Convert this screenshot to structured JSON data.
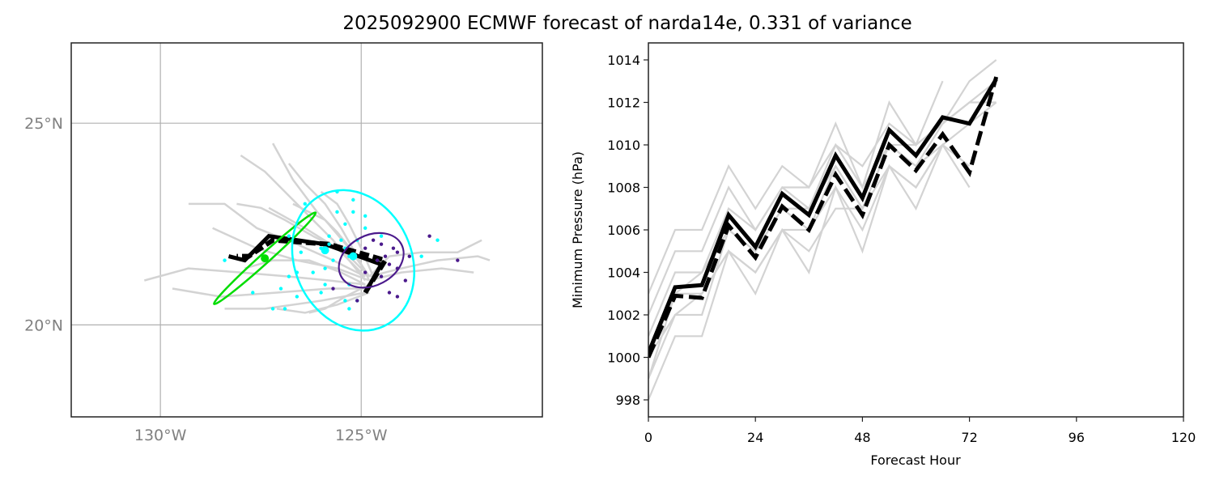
{
  "figure": {
    "title": "2025092900 ECMWF forecast of narda14e, 0.331 of variance"
  },
  "chart_data": [
    {
      "type": "map-track",
      "name": "track-map",
      "xlim": [
        -132.22,
        -120.49
      ],
      "ylim": [
        17.72,
        26.99
      ],
      "grid": true,
      "x_ticks": [
        {
          "value": -130,
          "label": "130°W"
        },
        {
          "value": -125,
          "label": "125°W"
        }
      ],
      "y_ticks": [
        {
          "value": 25,
          "label": "25°N"
        },
        {
          "value": 20,
          "label": "20°N"
        }
      ],
      "colors": {
        "member": "#d3d3d3",
        "mean": "#000000",
        "green": "#00dd00",
        "cyan": "#00ffff",
        "purple": "#4b1a8c",
        "grid": "#b0b0b0",
        "tick_label": "#808080"
      },
      "member_tracks": [
        [
          [
            -124.8,
            21.2
          ],
          [
            -125.2,
            21.8
          ],
          [
            -125.6,
            22.3
          ],
          [
            -126.1,
            22.8
          ],
          [
            -126.7,
            23.6
          ],
          [
            -127.2,
            24.5
          ]
        ],
        [
          [
            -124.9,
            21.1
          ],
          [
            -125.3,
            21.6
          ],
          [
            -125.7,
            22.1
          ],
          [
            -126.3,
            22.7
          ],
          [
            -126.8,
            23.2
          ],
          [
            -127.4,
            23.8
          ],
          [
            -128.0,
            24.2
          ]
        ],
        [
          [
            -124.8,
            21.1
          ],
          [
            -125.1,
            21.7
          ],
          [
            -125.5,
            22.4
          ],
          [
            -125.9,
            23.0
          ],
          [
            -126.4,
            23.5
          ],
          [
            -126.8,
            24.0
          ]
        ],
        [
          [
            -124.7,
            21.2
          ],
          [
            -125.0,
            21.9
          ],
          [
            -125.3,
            22.5
          ],
          [
            -125.6,
            23.0
          ],
          [
            -126.0,
            23.3
          ]
        ],
        [
          [
            -124.8,
            21.2
          ],
          [
            -125.4,
            21.8
          ],
          [
            -126.2,
            22.2
          ],
          [
            -126.9,
            22.6
          ],
          [
            -127.5,
            22.9
          ],
          [
            -128.1,
            23.0
          ]
        ],
        [
          [
            -124.9,
            21.2
          ],
          [
            -125.7,
            21.6
          ],
          [
            -126.6,
            22.0
          ],
          [
            -127.6,
            22.4
          ],
          [
            -128.4,
            23.0
          ],
          [
            -129.3,
            23.0
          ]
        ],
        [
          [
            -124.8,
            21.1
          ],
          [
            -125.6,
            21.4
          ],
          [
            -126.6,
            21.6
          ],
          [
            -127.6,
            21.9
          ],
          [
            -128.7,
            22.4
          ]
        ],
        [
          [
            -124.9,
            21.0
          ],
          [
            -125.8,
            21.1
          ],
          [
            -126.8,
            21.2
          ],
          [
            -128.0,
            21.3
          ],
          [
            -129.3,
            21.4
          ],
          [
            -130.4,
            21.1
          ]
        ],
        [
          [
            -124.8,
            20.9
          ],
          [
            -125.8,
            20.9
          ],
          [
            -127.1,
            20.8
          ],
          [
            -128.5,
            20.7
          ],
          [
            -129.7,
            20.9
          ]
        ],
        [
          [
            -124.9,
            20.8
          ],
          [
            -126.0,
            20.6
          ],
          [
            -127.4,
            20.4
          ],
          [
            -128.4,
            20.4
          ]
        ],
        [
          [
            -124.8,
            20.8
          ],
          [
            -125.6,
            20.5
          ],
          [
            -126.4,
            20.3
          ],
          [
            -127.1,
            20.4
          ]
        ],
        [
          [
            -124.8,
            21.2
          ],
          [
            -124.3,
            21.7
          ],
          [
            -123.5,
            21.8
          ],
          [
            -122.6,
            21.8
          ],
          [
            -122.0,
            22.1
          ]
        ],
        [
          [
            -124.8,
            21.2
          ],
          [
            -124.0,
            21.4
          ],
          [
            -123.1,
            21.6
          ],
          [
            -122.1,
            21.7
          ],
          [
            -121.8,
            21.6
          ]
        ],
        [
          [
            -124.8,
            21.1
          ],
          [
            -124.0,
            21.3
          ],
          [
            -123.0,
            21.4
          ],
          [
            -122.2,
            21.3
          ]
        ],
        [
          [
            -124.8,
            21.2
          ],
          [
            -125.3,
            21.9
          ],
          [
            -125.9,
            22.6
          ],
          [
            -126.7,
            23.0
          ]
        ],
        [
          [
            -124.9,
            21.2
          ],
          [
            -125.6,
            21.9
          ],
          [
            -126.4,
            22.4
          ],
          [
            -127.3,
            22.9
          ]
        ],
        [
          [
            -124.8,
            21.0
          ],
          [
            -125.4,
            20.7
          ],
          [
            -125.9,
            20.4
          ],
          [
            -126.3,
            20.3
          ]
        ],
        [
          [
            -124.9,
            21.0
          ],
          [
            -125.5,
            21.3
          ],
          [
            -126.3,
            21.6
          ],
          [
            -127.2,
            21.6
          ],
          [
            -127.9,
            21.4
          ]
        ]
      ],
      "mean_tracks": [
        {
          "style": "solid",
          "points": [
            [
              -124.9,
              20.8
            ],
            [
              -124.5,
              21.5
            ],
            [
              -125.9,
              22.0
            ],
            [
              -127.3,
              22.2
            ],
            [
              -127.9,
              21.6
            ],
            [
              -128.3,
              21.7
            ]
          ]
        },
        {
          "style": "dashed",
          "points": [
            [
              -124.9,
              20.8
            ],
            [
              -124.4,
              21.6
            ],
            [
              -125.8,
              22.0
            ],
            [
              -127.2,
              22.1
            ],
            [
              -127.8,
              21.7
            ],
            [
              -128.1,
              21.7
            ]
          ]
        }
      ],
      "ellipses": [
        {
          "color": "green",
          "center": [
            -127.4,
            21.65
          ],
          "semi_major_deg": 1.7,
          "semi_minor_deg": 0.12,
          "angle_deg": 42
        },
        {
          "color": "cyan",
          "center": [
            -125.2,
            21.6
          ],
          "semi_major_deg": 1.45,
          "semi_minor_deg": 1.8,
          "angle_deg": 25
        },
        {
          "color": "purple",
          "center": [
            -124.75,
            21.6
          ],
          "semi_major_deg": 0.85,
          "semi_minor_deg": 0.62,
          "angle_deg": 28
        }
      ],
      "cyan_points": [
        [
          -125.6,
          23.3
        ],
        [
          -125.2,
          23.1
        ],
        [
          -126.4,
          23.0
        ],
        [
          -125.6,
          22.8
        ],
        [
          -125.2,
          22.8
        ],
        [
          -124.9,
          22.7
        ],
        [
          -125.4,
          22.5
        ],
        [
          -124.9,
          22.4
        ],
        [
          -126.8,
          22.2
        ],
        [
          -125.8,
          22.2
        ],
        [
          -125.5,
          22.1
        ],
        [
          -125.1,
          22.1
        ],
        [
          -126.0,
          21.9
        ],
        [
          -125.8,
          22.0
        ],
        [
          -125.4,
          21.9
        ],
        [
          -124.5,
          22.2
        ],
        [
          -126.5,
          21.8
        ],
        [
          -125.3,
          21.7
        ],
        [
          -125.7,
          21.6
        ],
        [
          -125.9,
          21.4
        ],
        [
          -126.6,
          21.3
        ],
        [
          -126.2,
          21.3
        ],
        [
          -126.8,
          21.2
        ],
        [
          -125.9,
          21.0
        ],
        [
          -125.3,
          21.0
        ],
        [
          -126.0,
          20.8
        ],
        [
          -126.6,
          20.7
        ],
        [
          -125.4,
          20.6
        ],
        [
          -127.7,
          20.8
        ],
        [
          -127.2,
          20.4
        ],
        [
          -126.9,
          20.4
        ],
        [
          -125.3,
          20.4
        ],
        [
          -123.5,
          21.7
        ],
        [
          -123.1,
          22.1
        ],
        [
          -125.1,
          20.6
        ],
        [
          -128.4,
          21.6
        ],
        [
          -127.0,
          20.9
        ]
      ],
      "purple_points": [
        [
          -124.7,
          22.1
        ],
        [
          -124.5,
          22.0
        ],
        [
          -124.2,
          21.9
        ],
        [
          -124.9,
          21.9
        ],
        [
          -124.4,
          21.7
        ],
        [
          -124.1,
          21.8
        ],
        [
          -124.6,
          21.6
        ],
        [
          -124.3,
          21.5
        ],
        [
          -123.8,
          21.7
        ],
        [
          -123.3,
          22.2
        ],
        [
          -122.6,
          21.6
        ],
        [
          -124.1,
          21.4
        ],
        [
          -124.5,
          21.2
        ],
        [
          -124.9,
          21.3
        ],
        [
          -124.3,
          20.8
        ],
        [
          -125.7,
          20.9
        ],
        [
          -125.1,
          20.6
        ],
        [
          -124.1,
          20.7
        ],
        [
          -123.9,
          21.1
        ]
      ]
    },
    {
      "type": "line",
      "name": "pressure-chart",
      "xlabel": "Forecast Hour",
      "ylabel": "Minimum Pressure (hPa)",
      "xlim": [
        0,
        120
      ],
      "ylim": [
        997.2,
        1014.8
      ],
      "x_ticks": [
        0,
        24,
        48,
        72,
        96,
        120
      ],
      "y_ticks": [
        998,
        1000,
        1002,
        1004,
        1006,
        1008,
        1010,
        1012,
        1014
      ],
      "x": [
        0,
        6,
        12,
        18,
        24,
        30,
        36,
        42,
        48,
        54,
        60,
        66,
        72,
        78
      ],
      "colors": {
        "member": "#d3d3d3",
        "mean": "#000000"
      },
      "member_series": [
        [
          1003,
          1006,
          1006,
          1009,
          1007,
          1009,
          1008,
          1011,
          1008,
          1012,
          1010,
          1013,
          null,
          null
        ],
        [
          1002,
          1005,
          1005,
          1008,
          1006,
          1008,
          1008,
          1010,
          1009,
          1011,
          1010,
          1011,
          1013,
          1014
        ],
        [
          1001,
          1004,
          1004,
          1007,
          1006,
          1008,
          1007,
          1009,
          1007,
          1010,
          1009,
          1011,
          1012,
          1013
        ],
        [
          1000,
          1003,
          1004,
          1006,
          1005,
          1007,
          1006,
          1009,
          1007,
          1010,
          1009,
          1010,
          1011,
          1012
        ],
        [
          999,
          1002,
          1003,
          1005,
          1004,
          1006,
          1006,
          1008,
          1006,
          1009,
          1008,
          1010,
          1008,
          null
        ],
        [
          998,
          1001,
          1001,
          1005,
          1003,
          1006,
          1004,
          1008,
          1005,
          1009,
          1007,
          1010,
          null,
          null
        ],
        [
          1000,
          1002,
          1002,
          1006,
          1005,
          1007,
          1007,
          1010,
          1008,
          1010,
          1010,
          1011,
          1012,
          1012
        ],
        [
          999,
          1003,
          1003,
          1005,
          1004,
          1006,
          1005,
          1007,
          1007,
          1009,
          1008,
          1010,
          1009,
          null
        ]
      ],
      "series": [
        {
          "name": "mean",
          "style": "solid",
          "values": [
            1000.2,
            1003.3,
            1003.4,
            1006.7,
            1005.2,
            1007.7,
            1006.7,
            1009.5,
            1007.5,
            1010.7,
            1009.5,
            1011.3,
            1011.0,
            1013.1
          ]
        },
        {
          "name": "mean-dashed",
          "style": "dashed",
          "values": [
            1000.0,
            1002.9,
            1002.8,
            1006.2,
            1004.7,
            1007.1,
            1006.0,
            1008.6,
            1006.7,
            1010.0,
            1008.8,
            1010.5,
            1008.7,
            1013.2
          ]
        }
      ]
    }
  ]
}
